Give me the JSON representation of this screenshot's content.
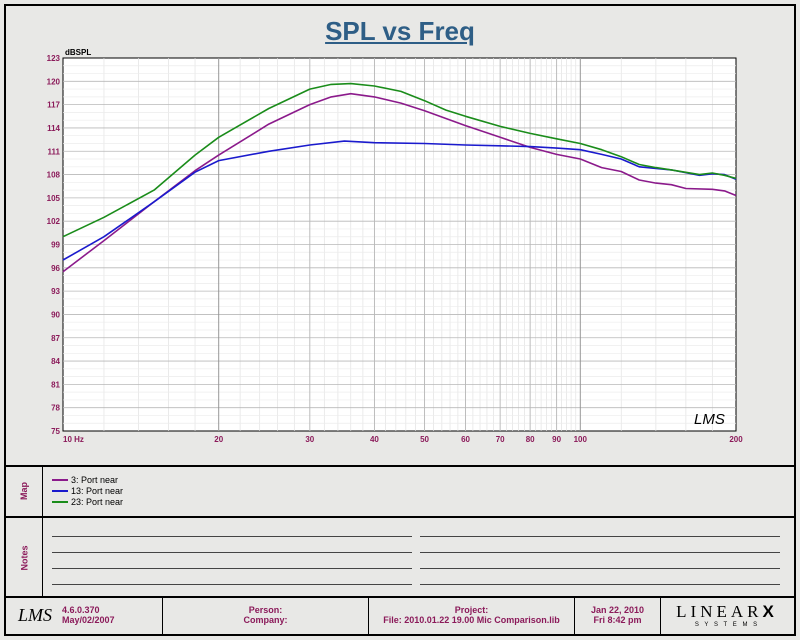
{
  "chart_data": {
    "type": "line",
    "title": "SPL vs Freq",
    "ylabel": "dBSPL",
    "xscale": "log",
    "xlim": [
      10,
      200
    ],
    "ylim": [
      75,
      123
    ],
    "yticks": [
      "123",
      "120",
      "117",
      "114",
      "111",
      "108",
      "105",
      "102",
      "99",
      "96",
      "93",
      "90",
      "87",
      "84",
      "81",
      "78",
      "75"
    ],
    "xticks": [
      {
        "v": 10,
        "label": "10  Hz"
      },
      {
        "v": 20,
        "label": "20"
      },
      {
        "v": 30,
        "label": "30"
      },
      {
        "v": 40,
        "label": "40"
      },
      {
        "v": 50,
        "label": "50"
      },
      {
        "v": 60,
        "label": "60"
      },
      {
        "v": 70,
        "label": "70"
      },
      {
        "v": 80,
        "label": "80"
      },
      {
        "v": 90,
        "label": "90"
      },
      {
        "v": 100,
        "label": "100"
      },
      {
        "v": 200,
        "label": "200"
      }
    ],
    "grid": true,
    "series": [
      {
        "name": "3: Port near",
        "color": "#8b1a8b",
        "points": [
          [
            10,
            95.5
          ],
          [
            12,
            99.5
          ],
          [
            15,
            104.5
          ],
          [
            18,
            108.5
          ],
          [
            20,
            110.5
          ],
          [
            25,
            114.5
          ],
          [
            30,
            117
          ],
          [
            33,
            118
          ],
          [
            36,
            118.4
          ],
          [
            40,
            118
          ],
          [
            45,
            117.2
          ],
          [
            50,
            116.2
          ],
          [
            60,
            114.3
          ],
          [
            70,
            112.8
          ],
          [
            80,
            111.5
          ],
          [
            90,
            110.6
          ],
          [
            100,
            110
          ],
          [
            110,
            108.9
          ],
          [
            120,
            108.4
          ],
          [
            130,
            107.3
          ],
          [
            140,
            106.9
          ],
          [
            150,
            106.7
          ],
          [
            160,
            106.2
          ],
          [
            180,
            106.1
          ],
          [
            190,
            105.9
          ],
          [
            200,
            105.3
          ]
        ]
      },
      {
        "name": "13: Port near",
        "color": "#1a1acd",
        "points": [
          [
            10,
            97
          ],
          [
            12,
            100
          ],
          [
            15,
            104.5
          ],
          [
            18,
            108.3
          ],
          [
            20,
            109.8
          ],
          [
            25,
            111
          ],
          [
            30,
            111.8
          ],
          [
            35,
            112.3
          ],
          [
            40,
            112.1
          ],
          [
            50,
            112
          ],
          [
            60,
            111.8
          ],
          [
            70,
            111.7
          ],
          [
            80,
            111.6
          ],
          [
            90,
            111.4
          ],
          [
            100,
            111.2
          ],
          [
            110,
            110.6
          ],
          [
            120,
            110
          ],
          [
            130,
            109
          ],
          [
            150,
            108.6
          ],
          [
            170,
            107.9
          ],
          [
            180,
            108.1
          ],
          [
            190,
            108
          ],
          [
            200,
            107.4
          ]
        ]
      },
      {
        "name": "23: Port near",
        "color": "#1a8c1a",
        "points": [
          [
            10,
            100
          ],
          [
            12,
            102.5
          ],
          [
            15,
            106
          ],
          [
            18,
            110.5
          ],
          [
            20,
            112.8
          ],
          [
            25,
            116.5
          ],
          [
            30,
            119
          ],
          [
            33,
            119.6
          ],
          [
            36,
            119.7
          ],
          [
            40,
            119.4
          ],
          [
            45,
            118.7
          ],
          [
            50,
            117.5
          ],
          [
            55,
            116.3
          ],
          [
            60,
            115.5
          ],
          [
            70,
            114.2
          ],
          [
            80,
            113.3
          ],
          [
            90,
            112.6
          ],
          [
            100,
            112
          ],
          [
            110,
            111.2
          ],
          [
            120,
            110.3
          ],
          [
            130,
            109.3
          ],
          [
            140,
            108.9
          ],
          [
            150,
            108.6
          ],
          [
            170,
            108
          ],
          [
            180,
            108.2
          ],
          [
            190,
            107.9
          ],
          [
            200,
            107.5
          ]
        ]
      }
    ]
  },
  "watermark": "LMS",
  "map_label": "Map",
  "notes_label": "Notes",
  "footer": {
    "logo": "LMS",
    "version": "4.6.0.370",
    "version_date": "May/02/2007",
    "person_label": "Person:",
    "company_label": "Company:",
    "project_label": "Project:",
    "file_label": "File: 2010.01.22 19.00 Mic Comparison.lib",
    "date": "Jan 22, 2010",
    "time": "Fri  8:42 pm",
    "brand": "LINEAR",
    "brand_x": "X",
    "brand_sub": "S  Y  S  T  E  M  S"
  }
}
